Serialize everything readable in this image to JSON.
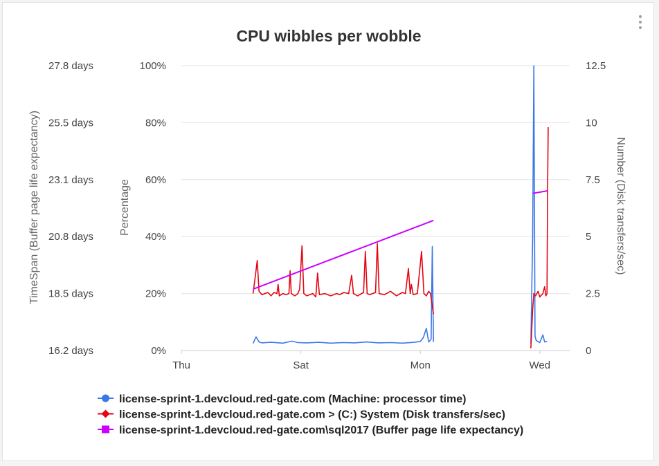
{
  "chart_data": {
    "type": "line",
    "title": "CPU wibbles per wobble",
    "x_tick_labels": [
      "Thu",
      "Sat",
      "Mon",
      "Wed"
    ],
    "x_range_days": [
      0,
      6.5
    ],
    "axes": {
      "left_outer": {
        "label": "TimeSpan (Buffer page life expectancy)",
        "ticks": [
          "27.8 days",
          "25.5 days",
          "23.1 days",
          "20.8 days",
          "18.5 days",
          "16.2 days"
        ],
        "range": [
          16.2,
          27.8
        ]
      },
      "left_inner": {
        "label": "Percentage",
        "ticks": [
          "100%",
          "80%",
          "60%",
          "40%",
          "20%",
          "0%"
        ],
        "range": [
          0,
          100
        ]
      },
      "right": {
        "label": "Number (Disk transfers/sec)",
        "ticks": [
          "12.5",
          "10",
          "7.5",
          "5",
          "2.5",
          "0"
        ],
        "range": [
          0,
          12.5
        ]
      }
    },
    "series": [
      {
        "name": "license-sprint-1.devcloud.red-gate.com (Machine: processor time)",
        "color": "#3b78e7",
        "marker": "circle",
        "axis": "left_inner",
        "segments": [
          [
            [
              1.2,
              2.5
            ],
            [
              1.25,
              4.8
            ],
            [
              1.3,
              3.0
            ],
            [
              1.35,
              2.7
            ],
            [
              1.5,
              2.9
            ],
            [
              1.7,
              2.6
            ],
            [
              1.85,
              3.3
            ],
            [
              1.95,
              2.8
            ],
            [
              2.1,
              2.7
            ],
            [
              2.3,
              2.9
            ],
            [
              2.5,
              2.6
            ],
            [
              2.7,
              2.8
            ],
            [
              2.9,
              2.7
            ],
            [
              3.1,
              3.0
            ],
            [
              3.3,
              2.7
            ],
            [
              3.5,
              2.8
            ],
            [
              3.7,
              2.6
            ],
            [
              3.9,
              2.9
            ],
            [
              4.0,
              3.2
            ],
            [
              4.05,
              4.5
            ],
            [
              4.1,
              7.8
            ],
            [
              4.14,
              3.0
            ],
            [
              4.18,
              4.0
            ],
            [
              4.2,
              36.5
            ],
            [
              4.22,
              3.0
            ]
          ],
          [
            [
              5.85,
              2.5
            ],
            [
              5.88,
              40
            ],
            [
              5.9,
              100
            ],
            [
              5.92,
              5
            ],
            [
              5.94,
              3.5
            ],
            [
              6.0,
              2.8
            ],
            [
              6.05,
              5.5
            ],
            [
              6.08,
              3.0
            ],
            [
              6.12,
              3.2
            ]
          ]
        ]
      },
      {
        "name": "license-sprint-1.devcloud.red-gate.com > (C:) System (Disk transfers/sec)",
        "color": "#e30613",
        "marker": "diamond",
        "axis": "right",
        "segments": [
          [
            [
              1.2,
              2.5
            ],
            [
              1.24,
              3.3
            ],
            [
              1.27,
              3.95
            ],
            [
              1.3,
              2.6
            ],
            [
              1.35,
              2.45
            ],
            [
              1.45,
              2.55
            ],
            [
              1.5,
              2.4
            ],
            [
              1.55,
              2.55
            ],
            [
              1.6,
              2.5
            ],
            [
              1.62,
              2.9
            ],
            [
              1.64,
              2.4
            ],
            [
              1.7,
              2.5
            ],
            [
              1.75,
              2.45
            ],
            [
              1.8,
              2.5
            ],
            [
              1.82,
              3.5
            ],
            [
              1.84,
              2.5
            ],
            [
              1.9,
              2.4
            ],
            [
              1.95,
              2.5
            ],
            [
              1.98,
              2.7
            ],
            [
              2.02,
              4.6
            ],
            [
              2.05,
              2.5
            ],
            [
              2.1,
              2.4
            ],
            [
              2.2,
              2.5
            ],
            [
              2.25,
              2.35
            ],
            [
              2.28,
              3.4
            ],
            [
              2.31,
              2.45
            ],
            [
              2.4,
              2.5
            ],
            [
              2.5,
              2.4
            ],
            [
              2.6,
              2.5
            ],
            [
              2.65,
              2.45
            ],
            [
              2.72,
              2.55
            ],
            [
              2.8,
              2.5
            ],
            [
              2.85,
              3.3
            ],
            [
              2.88,
              2.5
            ],
            [
              2.95,
              2.4
            ],
            [
              3.05,
              2.55
            ],
            [
              3.08,
              4.35
            ],
            [
              3.11,
              2.5
            ],
            [
              3.15,
              2.45
            ],
            [
              3.25,
              2.55
            ],
            [
              3.28,
              4.7
            ],
            [
              3.31,
              2.5
            ],
            [
              3.4,
              2.45
            ],
            [
              3.5,
              2.6
            ],
            [
              3.55,
              2.5
            ],
            [
              3.6,
              2.4
            ],
            [
              3.7,
              2.55
            ],
            [
              3.75,
              2.5
            ],
            [
              3.8,
              3.6
            ],
            [
              3.83,
              2.5
            ],
            [
              3.85,
              2.9
            ],
            [
              3.88,
              2.45
            ],
            [
              3.95,
              2.5
            ],
            [
              4.02,
              4.35
            ],
            [
              4.06,
              2.5
            ],
            [
              4.1,
              2.4
            ],
            [
              4.14,
              2.6
            ],
            [
              4.17,
              2.5
            ],
            [
              4.22,
              1.6
            ]
          ],
          [
            [
              5.85,
              0.1
            ],
            [
              5.88,
              1.8
            ],
            [
              5.9,
              2.5
            ],
            [
              5.93,
              2.4
            ],
            [
              5.97,
              2.6
            ],
            [
              6.0,
              2.35
            ],
            [
              6.05,
              2.5
            ],
            [
              6.08,
              2.8
            ],
            [
              6.1,
              2.4
            ],
            [
              6.12,
              2.5
            ],
            [
              6.13,
              7.2
            ],
            [
              6.14,
              9.8
            ]
          ]
        ]
      },
      {
        "name": "license-sprint-1.devcloud.red-gate.com\\sql2017 (Buffer page life expectancy)",
        "color": "#cc00ff",
        "marker": "square",
        "axis": "left_outer",
        "segments": [
          [
            [
              1.2,
              18.7
            ],
            [
              4.22,
              21.5
            ]
          ],
          [
            [
              5.88,
              22.6
            ],
            [
              6.12,
              22.7
            ]
          ]
        ]
      }
    ]
  }
}
